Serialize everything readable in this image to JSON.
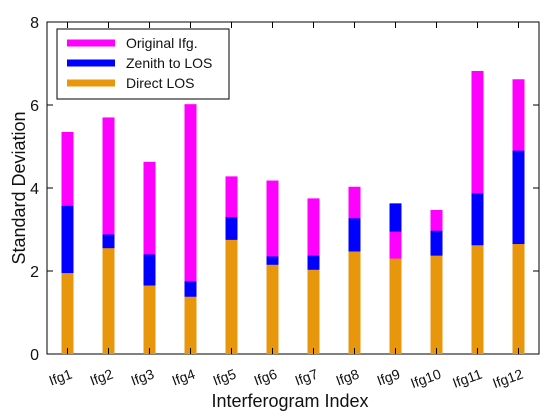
{
  "chart_data": {
    "type": "bar",
    "xlabel": "Interferogram Index",
    "ylabel": "Standard Deviation",
    "ylim": [
      0,
      8
    ],
    "yticks": [
      0,
      2,
      4,
      6,
      8
    ],
    "legend_position": "top-left",
    "categories": [
      "Ifg1",
      "Ifg2",
      "Ifg3",
      "Ifg4",
      "Ifg5",
      "Ifg6",
      "Ifg7",
      "Ifg8",
      "Ifg9",
      "Ifg10",
      "Ifg11",
      "Ifg12"
    ],
    "series": [
      {
        "name": "Original Ifg.",
        "color": "#ff00ff",
        "values": [
          5.35,
          5.7,
          4.63,
          6.02,
          4.28,
          4.18,
          3.75,
          4.03,
          2.95,
          3.47,
          6.82,
          6.62
        ]
      },
      {
        "name": "Zenith to LOS",
        "color": "#0000ff",
        "values": [
          3.57,
          2.88,
          2.4,
          1.75,
          3.3,
          2.35,
          2.37,
          3.27,
          3.63,
          2.97,
          3.87,
          4.9
        ]
      },
      {
        "name": "Direct LOS",
        "color": "#e8960c",
        "values": [
          1.95,
          2.55,
          1.65,
          1.38,
          2.75,
          2.15,
          2.03,
          2.47,
          2.3,
          2.37,
          2.62,
          2.65
        ]
      }
    ]
  }
}
